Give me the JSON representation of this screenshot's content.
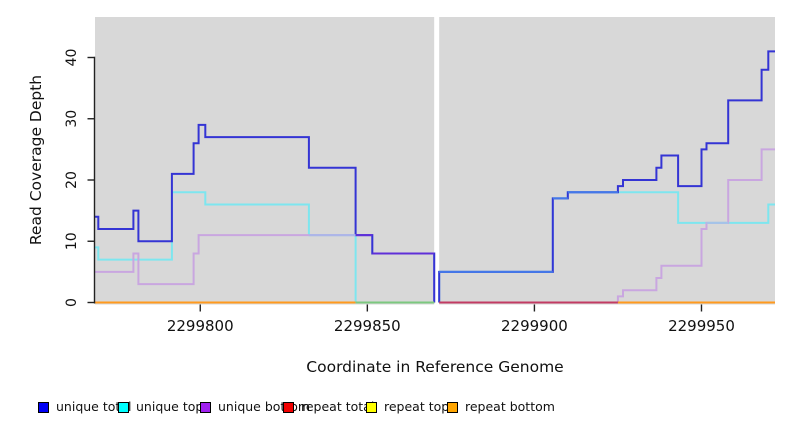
{
  "chart_data": {
    "type": "line",
    "step": true,
    "title": "",
    "xlabel": "Coordinate in Reference Genome",
    "ylabel": "Read Coverage Depth",
    "xlim": [
      2299768.5,
      2299972
    ],
    "ylim": [
      0,
      46.5
    ],
    "xticks": [
      2299800,
      2299850,
      2299900,
      2299950
    ],
    "yticks": [
      0,
      10,
      20,
      30,
      40
    ],
    "grid": false,
    "panel_background": "#D8D8D8",
    "masked_region": {
      "x1": 2299870,
      "x2": 2299871.5
    },
    "legend_position": "bottom",
    "series": [
      {
        "name": "unique total",
        "legend_color": "#0000F5",
        "line_color": "#3434D4",
        "left": [
          [
            2299768.5,
            14
          ],
          [
            2299769.5,
            12
          ],
          [
            2299780,
            15
          ],
          [
            2299781.5,
            10
          ],
          [
            2299791.5,
            21
          ],
          [
            2299798,
            26
          ],
          [
            2299799.5,
            29
          ],
          [
            2299801.5,
            27
          ],
          [
            2299832.5,
            22
          ],
          [
            2299846.5,
            11
          ],
          [
            2299851.5,
            8
          ],
          [
            2299870,
            0
          ]
        ],
        "right": [
          [
            2299871.5,
            5
          ],
          [
            2299905.5,
            17
          ],
          [
            2299910,
            18
          ],
          [
            2299925,
            19
          ],
          [
            2299926.5,
            20
          ],
          [
            2299936.5,
            22
          ],
          [
            2299938,
            24
          ],
          [
            2299943,
            19
          ],
          [
            2299950,
            25
          ],
          [
            2299951.5,
            26
          ],
          [
            2299958,
            33
          ],
          [
            2299968,
            38
          ],
          [
            2299970,
            41
          ]
        ]
      },
      {
        "name": "unique top",
        "legend_color": "#00FFFF",
        "line_color": "#7DE6EF",
        "left": [
          [
            2299768.5,
            9
          ],
          [
            2299769.5,
            7
          ],
          [
            2299791.5,
            18
          ],
          [
            2299801.5,
            16
          ],
          [
            2299832.5,
            11
          ],
          [
            2299846.5,
            0
          ]
        ],
        "right": [
          [
            2299871.5,
            5
          ],
          [
            2299905.5,
            17
          ],
          [
            2299910,
            18
          ],
          [
            2299943,
            13
          ],
          [
            2299970,
            16
          ]
        ]
      },
      {
        "name": "unique bottom",
        "legend_color": "#A020F0",
        "line_color": "#C9A6E0",
        "left": [
          [
            2299768.5,
            5
          ],
          [
            2299780,
            8
          ],
          [
            2299781.5,
            3
          ],
          [
            2299798,
            8
          ],
          [
            2299799.5,
            11
          ],
          [
            2299851.5,
            8
          ],
          [
            2299870,
            0
          ]
        ],
        "right": [
          [
            2299871.5,
            0
          ],
          [
            2299925,
            1
          ],
          [
            2299926.5,
            2
          ],
          [
            2299936.5,
            4
          ],
          [
            2299938,
            6
          ],
          [
            2299950,
            12
          ],
          [
            2299951.5,
            13
          ],
          [
            2299958,
            20
          ],
          [
            2299968,
            25
          ]
        ]
      },
      {
        "name": "repeat total",
        "legend_color": "#F00000",
        "line_color": "#D03030",
        "left": [
          [
            2299768.5,
            0
          ]
        ],
        "right": [
          [
            2299871.5,
            0
          ]
        ]
      },
      {
        "name": "repeat top",
        "legend_color": "#FFFF00",
        "line_color": "#F2F230",
        "left": [
          [
            2299768.5,
            0
          ]
        ],
        "right": [
          [
            2299871.5,
            0
          ]
        ]
      },
      {
        "name": "repeat bottom",
        "legend_color": "#FFA500",
        "line_color": "#FF9A1E",
        "left": [
          [
            2299768.5,
            0
          ]
        ],
        "right": [
          [
            2299871.5,
            0
          ]
        ]
      }
    ],
    "overlap_segments": [
      {
        "x1": 2299832.5,
        "x2": 2299846.5,
        "v": 11,
        "color": "#ADB6E8",
        "blend_of": "unique top + unique bottom"
      },
      {
        "x1": 2299846.5,
        "x2": 2299851.5,
        "v": 11,
        "color": "#5F2FD8",
        "blend_of": "unique total + unique bottom"
      },
      {
        "x1": 2299851.5,
        "x2": 2299870,
        "v": 8,
        "color": "#5F2FD8",
        "blend_of": "unique total + unique bottom"
      },
      {
        "x1": 2299871.5,
        "x2": 2299905.5,
        "v": 5,
        "color": "#4478E8",
        "blend_of": "unique total + unique top"
      },
      {
        "x1": 2299905.5,
        "x2": 2299910,
        "v": 17,
        "color": "#4478E8",
        "blend_of": "unique total + unique top"
      },
      {
        "x1": 2299910,
        "x2": 2299925,
        "v": 18,
        "color": "#4478E8",
        "blend_of": "unique total + unique top"
      },
      {
        "x1": 2299951.5,
        "x2": 2299958,
        "v": 13,
        "color": "#A4C4E8",
        "blend_of": "unique top + unique bottom"
      }
    ],
    "baseline_segments": [
      {
        "x1": 2299768.5,
        "x2": 2299846.5,
        "color": "#FF9A1E"
      },
      {
        "x1": 2299846.5,
        "x2": 2299870,
        "color": "#7CC87F"
      },
      {
        "x1": 2299871.5,
        "x2": 2299925,
        "color": "#C23B63"
      },
      {
        "x1": 2299925,
        "x2": 2299972,
        "color": "#FF9A1E"
      }
    ],
    "legend": [
      {
        "label": "unique total",
        "color": "#0000F5"
      },
      {
        "label": "unique top",
        "color": "#00FFFF"
      },
      {
        "label": "unique bottom",
        "color": "#A020F0"
      },
      {
        "label": "repeat total",
        "color": "#F00000"
      },
      {
        "label": "repeat top",
        "color": "#FFFF00"
      },
      {
        "label": "repeat bottom",
        "color": "#FFA500"
      }
    ]
  }
}
